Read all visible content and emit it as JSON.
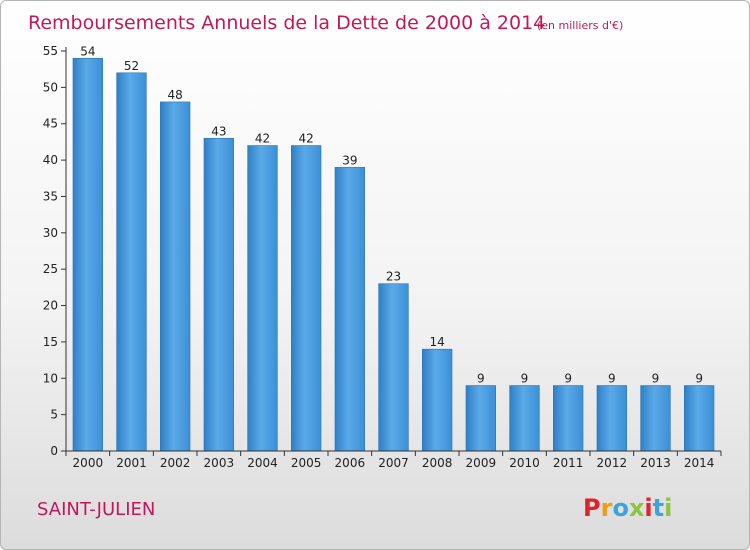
{
  "chart_data": {
    "type": "bar",
    "title": "Remboursements Annuels de la Dette de 2000 à 2014",
    "subtitle": "(en milliers d'€)",
    "categories": [
      "2000",
      "2001",
      "2002",
      "2003",
      "2004",
      "2005",
      "2006",
      "2007",
      "2008",
      "2009",
      "2010",
      "2011",
      "2012",
      "2013",
      "2014"
    ],
    "values": [
      54,
      52,
      48,
      43,
      42,
      42,
      39,
      23,
      14,
      9,
      9,
      9,
      9,
      9,
      9
    ],
    "ylim": [
      0,
      55
    ],
    "yticks": [
      0,
      5,
      10,
      15,
      20,
      25,
      30,
      35,
      40,
      45,
      50,
      55
    ],
    "grid": false,
    "bar_color": "#4a9be0"
  },
  "commune": "SAINT-JULIEN",
  "logo": {
    "letters": [
      "P",
      "r",
      "o",
      "x",
      "i",
      "t",
      "i"
    ],
    "colors": [
      "#e2222b",
      "#f39c12",
      "#3aa3e0",
      "#8cc63f",
      "#e2222b",
      "#3aa3e0",
      "#8cc63f"
    ]
  }
}
